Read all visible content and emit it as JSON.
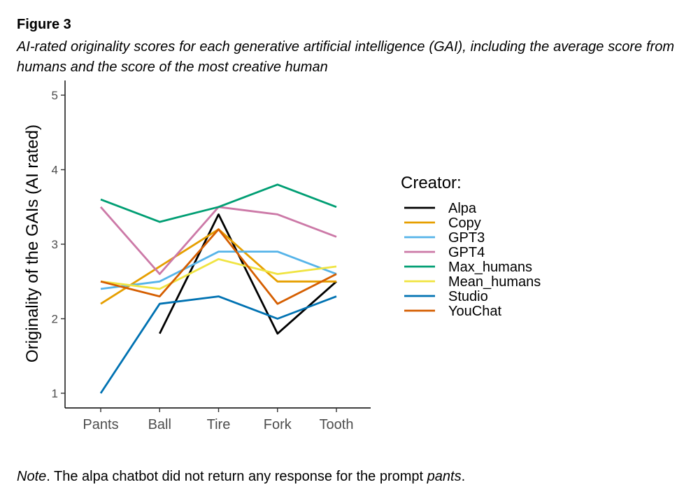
{
  "figure": {
    "label": "Figure 3",
    "caption": "AI-rated originality scores for each generative artificial intelligence (GAI), including the average score from humans and the score of the most creative human"
  },
  "note": {
    "prefix": "Note",
    "text": ". The alpa chatbot did not return any response for the prompt ",
    "emphasis": "pants",
    "suffix": "."
  },
  "chart_data": {
    "type": "line",
    "title": "",
    "xlabel": "",
    "ylabel": "Originality of the GAIs (AI rated)",
    "categories": [
      "Pants",
      "Ball",
      "Tire",
      "Fork",
      "Tooth"
    ],
    "ylim": [
      1,
      5
    ],
    "yticks": [
      1,
      2,
      3,
      4,
      5
    ],
    "grid": false,
    "legend": {
      "title": "Creator:",
      "placement": "right"
    },
    "series": [
      {
        "name": "Alpa",
        "color": "#000000",
        "values": [
          null,
          1.8,
          3.4,
          1.8,
          2.5
        ]
      },
      {
        "name": "Copy",
        "color": "#E69F00",
        "values": [
          2.2,
          2.7,
          3.2,
          2.5,
          2.5
        ]
      },
      {
        "name": "GPT3",
        "color": "#56B4E9",
        "values": [
          2.4,
          2.5,
          2.9,
          2.9,
          2.6
        ]
      },
      {
        "name": "GPT4",
        "color": "#CC79A7",
        "values": [
          3.5,
          2.6,
          3.5,
          3.4,
          3.1
        ]
      },
      {
        "name": "Max_humans",
        "color": "#009E73",
        "values": [
          3.6,
          3.3,
          3.5,
          3.8,
          3.5
        ]
      },
      {
        "name": "Mean_humans",
        "color": "#F0E442",
        "values": [
          2.5,
          2.4,
          2.8,
          2.6,
          2.7
        ]
      },
      {
        "name": "Studio",
        "color": "#0072B2",
        "values": [
          1.0,
          2.2,
          2.3,
          2.0,
          2.3
        ]
      },
      {
        "name": "YouChat",
        "color": "#D55E00",
        "values": [
          2.5,
          2.3,
          3.2,
          2.2,
          2.6
        ]
      }
    ]
  }
}
